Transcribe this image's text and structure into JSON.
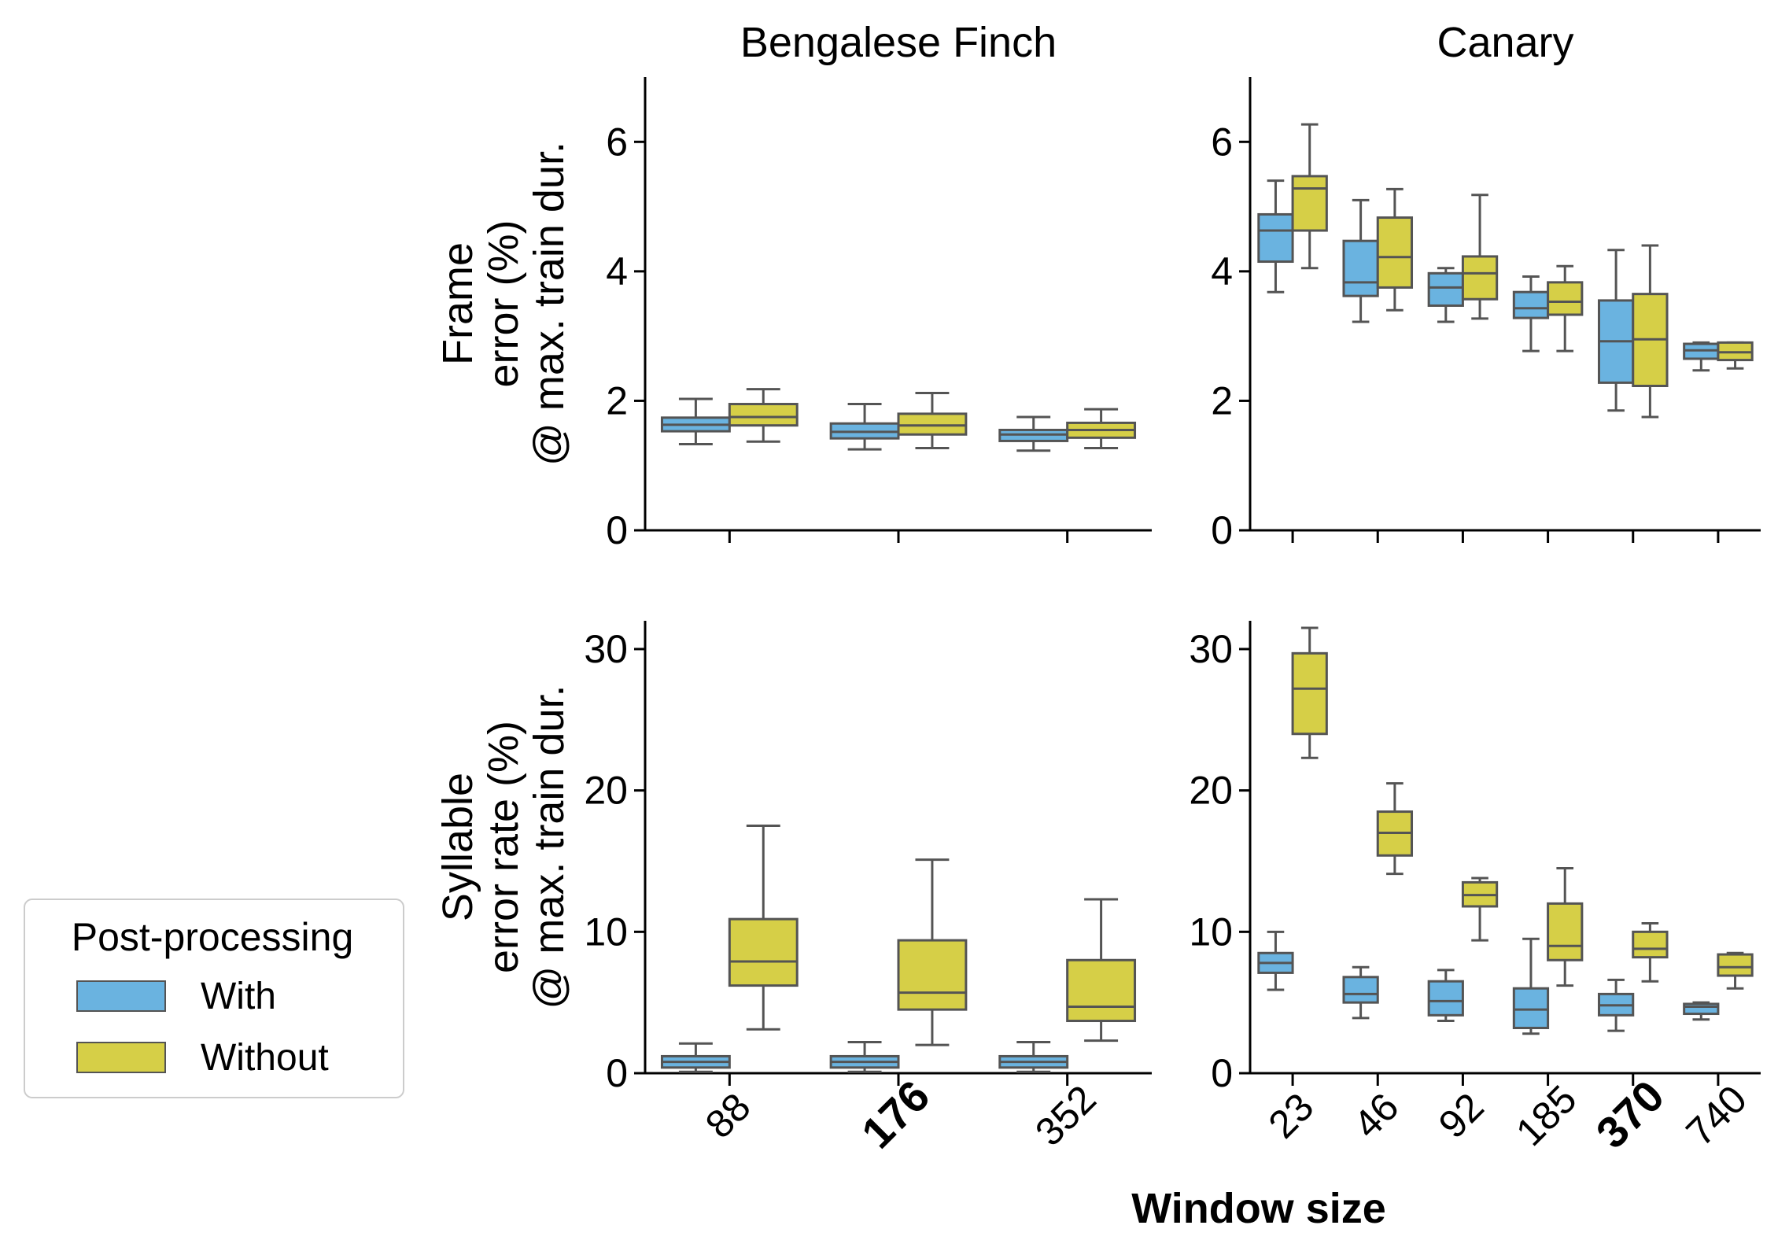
{
  "figure": {
    "xlabel": "Window size",
    "legend": {
      "title": "Post-processing",
      "placement": "lower-left (outside plot area)"
    }
  },
  "colors": {
    "With": "#6ab3e0",
    "Without": "#d6cf47",
    "box_edge": "#545454",
    "axis": "#000000"
  },
  "chart_data": [
    {
      "type": "box",
      "title": "Bengalese Finch",
      "ylabel": "Frame\nerror (%)\n@ max. train dur.",
      "ylim": [
        0,
        7
      ],
      "yticks": [
        0,
        2,
        4,
        6
      ],
      "categories": [
        "88",
        "176",
        "352"
      ],
      "bold_category": "176",
      "series": [
        {
          "name": "With",
          "boxes": [
            {
              "whislo": 1.33,
              "q1": 1.53,
              "med": 1.63,
              "q3": 1.74,
              "whishi": 2.03
            },
            {
              "whislo": 1.25,
              "q1": 1.42,
              "med": 1.52,
              "q3": 1.65,
              "whishi": 1.95
            },
            {
              "whislo": 1.23,
              "q1": 1.38,
              "med": 1.48,
              "q3": 1.55,
              "whishi": 1.75
            }
          ]
        },
        {
          "name": "Without",
          "boxes": [
            {
              "whislo": 1.37,
              "q1": 1.62,
              "med": 1.75,
              "q3": 1.95,
              "whishi": 2.18
            },
            {
              "whislo": 1.27,
              "q1": 1.48,
              "med": 1.62,
              "q3": 1.8,
              "whishi": 2.12
            },
            {
              "whislo": 1.27,
              "q1": 1.43,
              "med": 1.55,
              "q3": 1.66,
              "whishi": 1.87
            }
          ]
        }
      ]
    },
    {
      "type": "box",
      "title": "Canary",
      "ylabel": "",
      "ylim": [
        0,
        7
      ],
      "yticks": [
        0,
        2,
        4,
        6
      ],
      "categories": [
        "23",
        "46",
        "92",
        "185",
        "370",
        "740"
      ],
      "bold_category": "370",
      "series": [
        {
          "name": "With",
          "boxes": [
            {
              "whislo": 3.68,
              "q1": 4.15,
              "med": 4.63,
              "q3": 4.88,
              "whishi": 5.4
            },
            {
              "whislo": 3.22,
              "q1": 3.62,
              "med": 3.83,
              "q3": 4.47,
              "whishi": 5.1
            },
            {
              "whislo": 3.22,
              "q1": 3.47,
              "med": 3.75,
              "q3": 3.97,
              "whishi": 4.05
            },
            {
              "whislo": 2.77,
              "q1": 3.28,
              "med": 3.43,
              "q3": 3.68,
              "whishi": 3.92
            },
            {
              "whislo": 1.85,
              "q1": 2.28,
              "med": 2.92,
              "q3": 3.55,
              "whishi": 4.33
            },
            {
              "whislo": 2.47,
              "q1": 2.65,
              "med": 2.78,
              "q3": 2.88,
              "whishi": 2.9
            }
          ]
        },
        {
          "name": "Without",
          "boxes": [
            {
              "whislo": 4.05,
              "q1": 4.63,
              "med": 5.28,
              "q3": 5.47,
              "whishi": 6.27
            },
            {
              "whislo": 3.4,
              "q1": 3.75,
              "med": 4.22,
              "q3": 4.83,
              "whishi": 5.27
            },
            {
              "whislo": 3.27,
              "q1": 3.57,
              "med": 3.97,
              "q3": 4.23,
              "whishi": 5.18
            },
            {
              "whislo": 2.77,
              "q1": 3.33,
              "med": 3.53,
              "q3": 3.83,
              "whishi": 4.08
            },
            {
              "whislo": 1.75,
              "q1": 2.23,
              "med": 2.95,
              "q3": 3.65,
              "whishi": 4.4
            },
            {
              "whislo": 2.5,
              "q1": 2.63,
              "med": 2.75,
              "q3": 2.9,
              "whishi": 2.9
            }
          ]
        }
      ]
    },
    {
      "type": "box",
      "title": "",
      "ylabel": "Syllable\nerror rate (%)\n@ max. train dur.",
      "ylim": [
        0,
        32
      ],
      "yticks": [
        0,
        10,
        20,
        30
      ],
      "categories": [
        "88",
        "176",
        "352"
      ],
      "bold_category": "176",
      "series": [
        {
          "name": "With",
          "boxes": [
            {
              "whislo": 0.1,
              "q1": 0.4,
              "med": 0.8,
              "q3": 1.2,
              "whishi": 2.1
            },
            {
              "whislo": 0.1,
              "q1": 0.4,
              "med": 0.8,
              "q3": 1.2,
              "whishi": 2.2
            },
            {
              "whislo": 0.1,
              "q1": 0.4,
              "med": 0.8,
              "q3": 1.2,
              "whishi": 2.2
            }
          ]
        },
        {
          "name": "Without",
          "boxes": [
            {
              "whislo": 3.1,
              "q1": 6.2,
              "med": 7.9,
              "q3": 10.9,
              "whishi": 17.5
            },
            {
              "whislo": 2.0,
              "q1": 4.5,
              "med": 5.7,
              "q3": 9.4,
              "whishi": 15.1
            },
            {
              "whislo": 2.3,
              "q1": 3.7,
              "med": 4.7,
              "q3": 8.0,
              "whishi": 12.3
            }
          ]
        }
      ]
    },
    {
      "type": "box",
      "title": "",
      "ylabel": "",
      "ylim": [
        0,
        32
      ],
      "yticks": [
        0,
        10,
        20,
        30
      ],
      "categories": [
        "23",
        "46",
        "92",
        "185",
        "370",
        "740"
      ],
      "bold_category": "370",
      "series": [
        {
          "name": "With",
          "boxes": [
            {
              "whislo": 5.9,
              "q1": 7.1,
              "med": 7.8,
              "q3": 8.5,
              "whishi": 10.0
            },
            {
              "whislo": 3.9,
              "q1": 5.0,
              "med": 5.6,
              "q3": 6.8,
              "whishi": 7.5
            },
            {
              "whislo": 3.7,
              "q1": 4.1,
              "med": 5.1,
              "q3": 6.5,
              "whishi": 7.3
            },
            {
              "whislo": 2.8,
              "q1": 3.2,
              "med": 4.5,
              "q3": 6.0,
              "whishi": 9.5
            },
            {
              "whislo": 3.0,
              "q1": 4.1,
              "med": 4.8,
              "q3": 5.6,
              "whishi": 6.6
            },
            {
              "whislo": 3.8,
              "q1": 4.2,
              "med": 4.7,
              "q3": 4.9,
              "whishi": 5.0
            }
          ]
        },
        {
          "name": "Without",
          "boxes": [
            {
              "whislo": 22.3,
              "q1": 24.0,
              "med": 27.2,
              "q3": 29.7,
              "whishi": 31.5
            },
            {
              "whislo": 14.1,
              "q1": 15.4,
              "med": 17.0,
              "q3": 18.5,
              "whishi": 20.5
            },
            {
              "whislo": 9.4,
              "q1": 11.8,
              "med": 12.6,
              "q3": 13.5,
              "whishi": 13.8
            },
            {
              "whislo": 6.2,
              "q1": 8.0,
              "med": 9.0,
              "q3": 12.0,
              "whishi": 14.5
            },
            {
              "whislo": 6.5,
              "q1": 8.2,
              "med": 8.8,
              "q3": 10.0,
              "whishi": 10.6
            },
            {
              "whislo": 6.0,
              "q1": 6.9,
              "med": 7.5,
              "q3": 8.4,
              "whishi": 8.5
            }
          ]
        }
      ]
    }
  ]
}
